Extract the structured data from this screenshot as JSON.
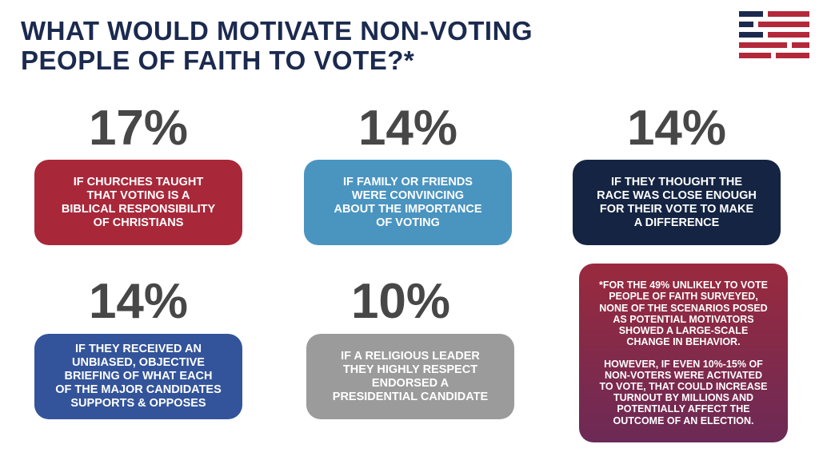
{
  "title": {
    "lines": [
      "WHAT WOULD MOTIVATE NON-VOTING",
      "PEOPLE OF FAITH TO VOTE?*"
    ]
  },
  "items": [
    {
      "percent": "17%",
      "lines": [
        "IF CHURCHES TAUGHT",
        "THAT VOTING IS A",
        "BIBLICAL RESPONSIBILITY",
        "OF CHRISTIANS"
      ]
    },
    {
      "percent": "14%",
      "lines": [
        "IF FAMILY OR FRIENDS",
        "WERE CONVINCING",
        "ABOUT THE IMPORTANCE",
        "OF VOTING"
      ]
    },
    {
      "percent": "14%",
      "lines": [
        "IF THEY THOUGHT THE",
        "RACE WAS CLOSE ENOUGH",
        "FOR THEIR VOTE TO MAKE",
        "A DIFFERENCE"
      ]
    },
    {
      "percent": "14%",
      "lines": [
        "IF THEY RECEIVED AN",
        "UNBIASED, OBJECTIVE",
        "BRIEFING OF WHAT EACH",
        "OF THE MAJOR CANDIDATES",
        "SUPPORTS & OPPOSES"
      ]
    },
    {
      "percent": "10%",
      "lines": [
        "IF A RELIGIOUS LEADER",
        "THEY HIGHLY RESPECT",
        "ENDORSED A",
        "PRESIDENTIAL CANDIDATE"
      ]
    }
  ],
  "footnote": {
    "paragraphs": [
      [
        "*FOR THE 49% UNLIKELY TO VOTE",
        "PEOPLE OF FAITH SURVEYED,",
        "NONE OF THE SCENARIOS POSED",
        "AS POTENTIAL MOTIVATORS",
        "SHOWED A LARGE-SCALE",
        "CHANGE IN BEHAVIOR."
      ],
      [
        "HOWEVER, IF EVEN 10%-15% OF",
        "NON-VOTERS WERE ACTIVATED",
        "TO VOTE, THAT COULD INCREASE",
        "TURNOUT BY MILLIONS AND",
        "POTENTIALLY AFFECT THE",
        "OUTCOME OF AN ELECTION."
      ]
    ]
  }
}
